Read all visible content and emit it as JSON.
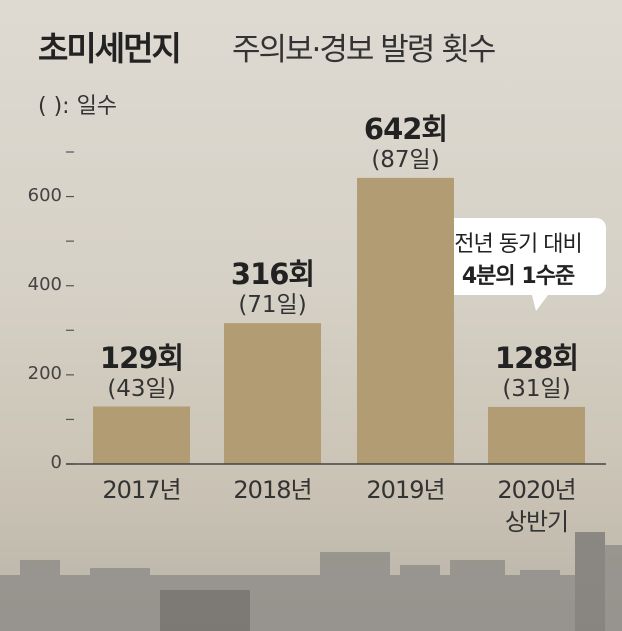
{
  "chart_data": {
    "type": "bar",
    "title": "초미세먼지",
    "subtitle": "주의보·경보 발령 횟수",
    "note": "(  ): 일수",
    "categories": [
      "2017년",
      "2018년",
      "2019년",
      "2020년 상반기"
    ],
    "values": [
      129,
      316,
      642,
      128
    ],
    "value_labels": [
      "129회",
      "316회",
      "642회",
      "128회"
    ],
    "day_labels": [
      "(43일)",
      "(71일)",
      "(87일)",
      "(31일)"
    ],
    "annotation": [
      "전년 동기 대비",
      "4분의 1수준"
    ],
    "color": "#b19c74",
    "ylim": [
      0,
      700
    ],
    "yticks": [
      0,
      200,
      400,
      600
    ],
    "yminor": [
      100,
      300,
      500,
      700
    ]
  }
}
